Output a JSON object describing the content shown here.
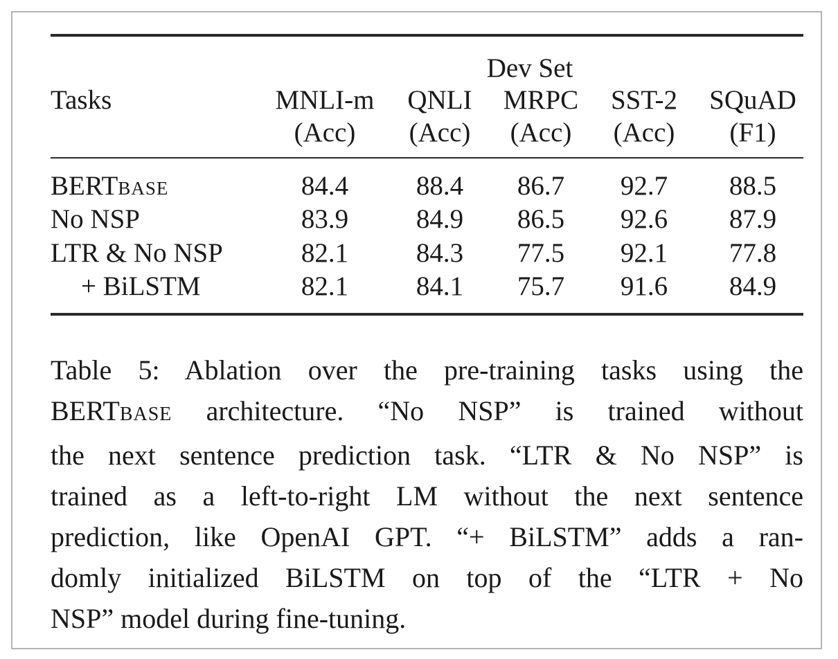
{
  "table": {
    "group_header": "Dev Set",
    "row_header": "Tasks",
    "columns": [
      {
        "name": "MNLI-m",
        "metric": "(Acc)"
      },
      {
        "name": "QNLI",
        "metric": "(Acc)"
      },
      {
        "name": "MRPC",
        "metric": "(Acc)"
      },
      {
        "name": "SST-2",
        "metric": "(Acc)"
      },
      {
        "name": "SQuAD",
        "metric": "(F1)"
      }
    ],
    "rows": [
      {
        "label": "BERT",
        "label_sub": "BASE",
        "values": [
          "84.4",
          "88.4",
          "86.7",
          "92.7",
          "88.5"
        ]
      },
      {
        "label": "No NSP",
        "values": [
          "83.9",
          "84.9",
          "86.5",
          "92.6",
          "87.9"
        ]
      },
      {
        "label": "LTR & No NSP",
        "values": [
          "82.1",
          "84.3",
          "77.5",
          "92.1",
          "77.8"
        ]
      },
      {
        "label": "+ BiLSTM",
        "values": [
          "82.1",
          "84.1",
          "75.7",
          "91.6",
          "84.9"
        ]
      }
    ]
  },
  "caption": {
    "line1": "Table 5: Ablation over the pre-training tasks using the",
    "line2_a": "BERT",
    "line2_sub": "BASE",
    "line2_b": " architecture.  “No NSP” is trained without",
    "line3": "the next sentence prediction task. “LTR & No NSP” is",
    "line4": "trained as a left-to-right LM without the next sentence",
    "line5": "prediction, like OpenAI GPT. “+ BiLSTM” adds a ran-",
    "line6": "domly initialized BiLSTM on top of the “LTR + No",
    "line7": "NSP” model during fine-tuning."
  }
}
